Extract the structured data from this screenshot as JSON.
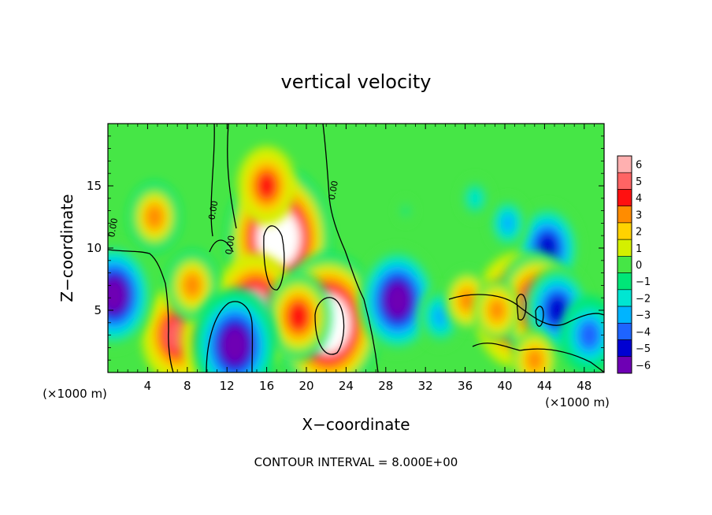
{
  "chart_data": {
    "type": "heatmap",
    "title": "vertical velocity",
    "xlabel": "X−coordinate",
    "ylabel": "Z−coordinate",
    "x_unit_left": "(×1000 m)",
    "x_unit_right": "(×1000 m)",
    "footer": "CONTOUR INTERVAL = 8.000E+00",
    "xlim": [
      0,
      50
    ],
    "ylim": [
      0,
      20
    ],
    "x_ticks": [
      "4",
      "8",
      "12",
      "16",
      "20",
      "24",
      "28",
      "32",
      "36",
      "40",
      "44",
      "48"
    ],
    "x_tick_values": [
      4,
      8,
      12,
      16,
      20,
      24,
      28,
      32,
      36,
      40,
      44,
      48
    ],
    "y_ticks": [
      "5",
      "10",
      "15"
    ],
    "y_tick_values": [
      5,
      10,
      15
    ],
    "contour_labels": [
      {
        "text": "0.00",
        "x": 10.9,
        "y": 13.0
      },
      {
        "text": "0.00",
        "x": 12.6,
        "y": 10.2
      },
      {
        "text": "0.00",
        "x": 23.0,
        "y": 14.6
      },
      {
        "text": "0.00",
        "x": 0.8,
        "y": 11.6
      }
    ],
    "colorbar": {
      "levels": [
        "6",
        "5",
        "4",
        "3",
        "2",
        "1",
        "0",
        "−1",
        "−2",
        "−3",
        "−4",
        "−5",
        "−6"
      ],
      "colors": [
        "#ffb0b0",
        "#ff6464",
        "#ff1010",
        "#ff8c00",
        "#ffd200",
        "#d4f000",
        "#46e646",
        "#00e678",
        "#00e6d2",
        "#00b4ff",
        "#1e64ff",
        "#0000d2",
        "#6e00b4"
      ]
    },
    "features": [
      {
        "x": 17.2,
        "y": 10.8,
        "value": 7.5
      },
      {
        "x": 22.2,
        "y": 3.9,
        "value": 7.5
      },
      {
        "x": 14.9,
        "y": 5.0,
        "value": 6.0
      },
      {
        "x": 19.2,
        "y": 4.5,
        "value": 4.5
      },
      {
        "x": 7.0,
        "y": 3.0,
        "value": 5.0
      },
      {
        "x": 10.3,
        "y": 2.6,
        "value": 4.0
      },
      {
        "x": 4.7,
        "y": 12.5,
        "value": 3.5
      },
      {
        "x": 8.5,
        "y": 7.0,
        "value": 3.5
      },
      {
        "x": 16.0,
        "y": 15.0,
        "value": 4.0
      },
      {
        "x": 0.6,
        "y": 6.2,
        "value": -5.5
      },
      {
        "x": 12.8,
        "y": 2.2,
        "value": -6.0
      },
      {
        "x": 29.2,
        "y": 5.8,
        "value": -5.5
      },
      {
        "x": 33.5,
        "y": 4.5,
        "value": -3.0
      },
      {
        "x": 44.3,
        "y": 10.0,
        "value": -4.5
      },
      {
        "x": 40.3,
        "y": 12.0,
        "value": -2.5
      },
      {
        "x": 37.0,
        "y": 14.0,
        "value": -2.0
      },
      {
        "x": 41.2,
        "y": 5.0,
        "value": 6.0
      },
      {
        "x": 43.2,
        "y": 5.5,
        "value": 5.5
      },
      {
        "x": 45.3,
        "y": 5.0,
        "value": -4.5
      },
      {
        "x": 36.2,
        "y": 5.8,
        "value": 3.0
      },
      {
        "x": 39.2,
        "y": 5.0,
        "value": 3.0
      },
      {
        "x": 43.0,
        "y": 1.0,
        "value": 3.0
      },
      {
        "x": 30.0,
        "y": 13.0,
        "value": -1.0
      },
      {
        "x": 48.5,
        "y": 3.0,
        "value": -4.0
      }
    ]
  }
}
